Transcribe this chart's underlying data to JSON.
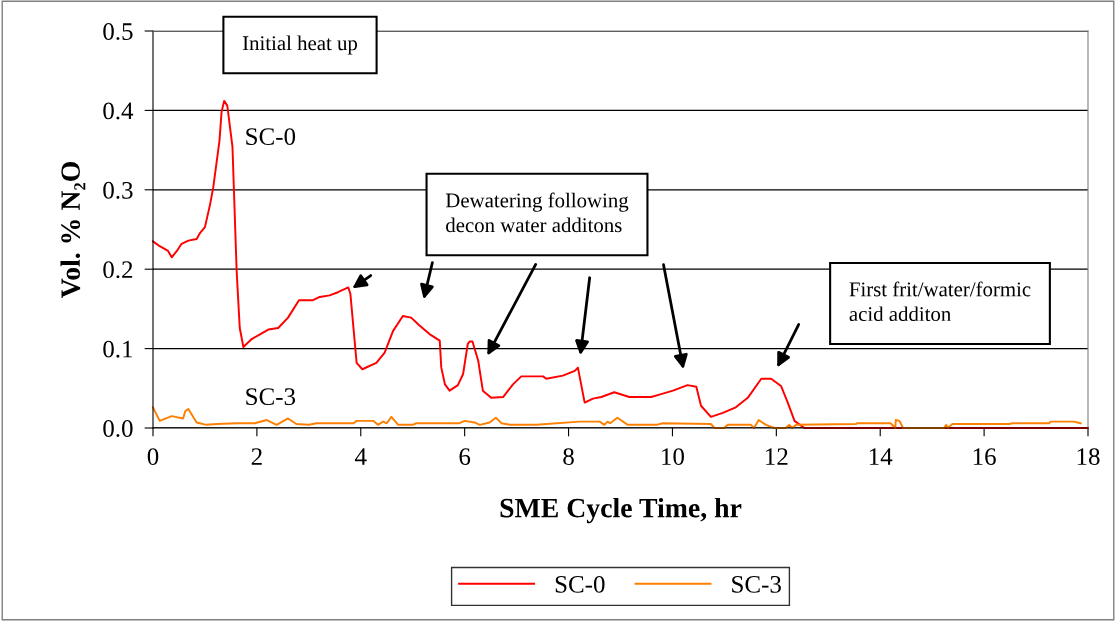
{
  "chart_data": {
    "type": "line",
    "xlabel": "SME Cycle Time, hr",
    "ylabel": "Vol. % N₂O",
    "xlim": [
      0,
      18
    ],
    "xticks": [
      0,
      2,
      4,
      6,
      8,
      10,
      12,
      14,
      16,
      18
    ],
    "ylim": [
      0,
      0.5
    ],
    "yticks": [
      {
        "value": 0,
        "label": "0.0"
      },
      0.1,
      0.2,
      0.3,
      0.4,
      0.5
    ],
    "grid": "y",
    "legend": "bottom",
    "line_style": "solid",
    "marker": "none",
    "annotations": [
      "Initial heat up",
      "Dewatering following\ndecon water additons",
      "First frit/water/formic\nacid additon"
    ],
    "series": [
      {
        "name": "SC-0",
        "color": "#ff0000",
        "x": [
          0,
          0.13,
          0.29,
          0.36,
          0.46,
          0.55,
          0.68,
          0.84,
          0.9,
          1.0,
          1.1,
          1.16,
          1.28,
          1.32,
          1.37,
          1.43,
          1.53,
          1.61,
          1.67,
          1.74,
          1.9,
          2.06,
          2.22,
          2.41,
          2.6,
          2.81,
          3.08,
          3.21,
          3.4,
          3.56,
          3.76,
          3.8,
          3.92,
          4.03,
          4.3,
          4.46,
          4.62,
          4.81,
          4.97,
          5.13,
          5.33,
          5.52,
          5.55,
          5.62,
          5.71,
          5.87,
          5.97,
          6.06,
          6.1,
          6.15,
          6.26,
          6.35,
          6.51,
          6.74,
          6.93,
          7.09,
          7.51,
          7.57,
          7.89,
          8.12,
          8.18,
          8.31,
          8.47,
          8.63,
          8.88,
          9.17,
          9.59,
          9.75,
          10.01,
          10.29,
          10.46,
          10.55,
          10.74,
          10.97,
          11.22,
          11.45,
          11.71,
          11.9,
          12.09,
          12.22,
          12.35,
          12.54,
          18
        ],
        "values": [
          0.235,
          0.229,
          0.223,
          0.215,
          0.223,
          0.232,
          0.236,
          0.238,
          0.245,
          0.253,
          0.282,
          0.303,
          0.362,
          0.398,
          0.412,
          0.406,
          0.354,
          0.198,
          0.126,
          0.102,
          0.112,
          0.118,
          0.124,
          0.126,
          0.139,
          0.161,
          0.161,
          0.165,
          0.167,
          0.171,
          0.177,
          0.169,
          0.082,
          0.074,
          0.082,
          0.095,
          0.122,
          0.141,
          0.139,
          0.129,
          0.118,
          0.11,
          0.076,
          0.055,
          0.047,
          0.054,
          0.068,
          0.106,
          0.109,
          0.109,
          0.085,
          0.047,
          0.038,
          0.039,
          0.055,
          0.065,
          0.065,
          0.062,
          0.066,
          0.072,
          0.076,
          0.032,
          0.037,
          0.039,
          0.045,
          0.039,
          0.039,
          0.042,
          0.047,
          0.054,
          0.052,
          0.028,
          0.014,
          0.019,
          0.026,
          0.038,
          0.062,
          0.062,
          0.053,
          0.032,
          0.009,
          0,
          0
        ]
      },
      {
        "name": "SC-3",
        "color": "#ff8000",
        "x": [
          0,
          0.13,
          0.36,
          0.58,
          0.62,
          0.68,
          0.84,
          1.03,
          1.23,
          1.61,
          1.96,
          2.19,
          2.38,
          2.6,
          2.76,
          3.0,
          3.15,
          3.86,
          3.92,
          4.24,
          4.33,
          4.43,
          4.5,
          4.59,
          4.72,
          5.0,
          5.07,
          5.9,
          6.0,
          6.19,
          6.29,
          6.48,
          6.6,
          6.71,
          6.87,
          7.38,
          8.21,
          8.6,
          8.69,
          8.75,
          8.8,
          8.94,
          9.14,
          9.69,
          9.81,
          10.74,
          10.81,
          11.0,
          11.06,
          11.51,
          11.57,
          11.66,
          11.8,
          11.96,
          12.18,
          12.25,
          12.31,
          12.38,
          13.53,
          13.56,
          14.2,
          14.29,
          14.3,
          14.37,
          14.44,
          15.23,
          15.27,
          15.3,
          15.39,
          16.48,
          16.55,
          17.25,
          17.28,
          17.73,
          17.86
        ],
        "values": [
          0.026,
          0.009,
          0.015,
          0.012,
          0.021,
          0.024,
          0.007,
          0.004,
          0.005,
          0.006,
          0.006,
          0.01,
          0.004,
          0.012,
          0.005,
          0.004,
          0.006,
          0.006,
          0.009,
          0.009,
          0.004,
          0.008,
          0.006,
          0.014,
          0.004,
          0.004,
          0.006,
          0.006,
          0.009,
          0.007,
          0.004,
          0.007,
          0.013,
          0.006,
          0.004,
          0.004,
          0.008,
          0.008,
          0.004,
          0.008,
          0.006,
          0.013,
          0.004,
          0.004,
          0.006,
          0.005,
          0,
          0,
          0.004,
          0.004,
          0,
          0.01,
          0.004,
          0,
          0,
          0.004,
          0,
          0.004,
          0.005,
          0.006,
          0.006,
          0,
          0.01,
          0.009,
          0,
          0,
          0.004,
          0,
          0.005,
          0.005,
          0.006,
          0.006,
          0.008,
          0.008,
          0.006
        ]
      }
    ]
  }
}
